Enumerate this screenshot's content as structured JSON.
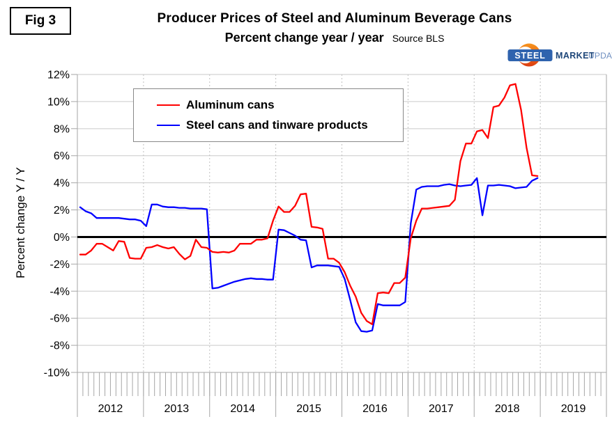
{
  "header": {
    "fig_label": "Fig 3",
    "title": "Producer Prices of Steel and Aluminum Beverage Cans",
    "subtitle": "Percent change year / year",
    "source": "Source BLS"
  },
  "logo": {
    "steel": "STEEL",
    "market": "MARKET",
    "update": "UPDATE",
    "box_color": "#2f63ae",
    "market_color": "#1e4679",
    "update_color": "#6f8fc0",
    "crescent_top_color": "#f7941e",
    "crescent_bottom_color": "#dd3e11"
  },
  "legend": {
    "items": [
      {
        "label": "Aluminum cans",
        "color": "#ff0000"
      },
      {
        "label": "Steel cans and tinware products",
        "color": "#0000ff"
      }
    ]
  },
  "y_axis": {
    "title": "Percent change Y / Y",
    "ticks": [
      "12%",
      "10%",
      "8%",
      "6%",
      "4%",
      "2%",
      "0%",
      "-2%",
      "-4%",
      "-6%",
      "-8%",
      "-10%"
    ]
  },
  "x_axis": {
    "years": [
      "2012",
      "2013",
      "2014",
      "2015",
      "2016",
      "2017",
      "2018",
      "2019"
    ]
  },
  "chart_data": {
    "type": "line",
    "title": "Producer Prices of Steel and Aluminum Beverage Cans",
    "subtitle": "Percent change year / year",
    "x_start": "2012-01",
    "x_interval": "monthly",
    "x_years": [
      2012,
      2013,
      2014,
      2015,
      2016,
      2017,
      2018,
      2019
    ],
    "ylim": [
      -10,
      12
    ],
    "y_tick_step": 2,
    "grid": true,
    "zero_line": true,
    "legend_position": "upper-left-inside",
    "series": [
      {
        "name": "Aluminum cans",
        "color": "#ff0000",
        "values": [
          -1.3,
          -1.3,
          -1.0,
          -0.5,
          -0.5,
          -0.75,
          -1.0,
          -0.3,
          -0.35,
          -1.55,
          -1.6,
          -1.6,
          -0.8,
          -0.75,
          -0.6,
          -0.75,
          -0.85,
          -0.75,
          -1.25,
          -1.65,
          -1.4,
          -0.2,
          -0.75,
          -0.8,
          -1.1,
          -1.15,
          -1.1,
          -1.15,
          -1.0,
          -0.5,
          -0.5,
          -0.5,
          -0.2,
          -0.2,
          -0.1,
          1.2,
          2.25,
          1.85,
          1.85,
          2.3,
          3.15,
          3.2,
          0.75,
          0.7,
          0.6,
          -1.6,
          -1.6,
          -1.9,
          -2.6,
          -3.6,
          -4.4,
          -5.6,
          -6.2,
          -6.45,
          -4.15,
          -4.1,
          -4.15,
          -3.4,
          -3.4,
          -3.0,
          -0.1,
          1.2,
          2.1,
          2.1,
          2.15,
          2.2,
          2.25,
          2.3,
          2.75,
          5.6,
          6.9,
          6.9,
          7.8,
          7.9,
          7.3,
          9.6,
          9.7,
          10.3,
          11.2,
          11.3,
          9.4,
          6.6,
          4.55,
          4.5
        ]
      },
      {
        "name": "Steel cans and tinware products",
        "color": "#0000ff",
        "values": [
          2.2,
          1.9,
          1.75,
          1.4,
          1.4,
          1.4,
          1.4,
          1.4,
          1.35,
          1.3,
          1.3,
          1.2,
          0.8,
          2.4,
          2.4,
          2.25,
          2.2,
          2.2,
          2.15,
          2.15,
          2.1,
          2.1,
          2.1,
          2.05,
          -3.8,
          -3.75,
          -3.6,
          -3.45,
          -3.3,
          -3.2,
          -3.1,
          -3.05,
          -3.1,
          -3.1,
          -3.15,
          -3.15,
          0.55,
          0.5,
          0.3,
          0.1,
          -0.2,
          -0.25,
          -2.25,
          -2.1,
          -2.1,
          -2.1,
          -2.15,
          -2.2,
          -3.1,
          -4.65,
          -6.3,
          -6.95,
          -7.0,
          -6.9,
          -4.95,
          -5.05,
          -5.05,
          -5.05,
          -5.05,
          -4.8,
          1.0,
          3.5,
          3.7,
          3.75,
          3.75,
          3.75,
          3.85,
          3.9,
          3.8,
          3.75,
          3.8,
          3.85,
          4.35,
          1.6,
          3.8,
          3.8,
          3.85,
          3.8,
          3.75,
          3.6,
          3.65,
          3.7,
          4.15,
          4.35
        ]
      }
    ]
  },
  "style": {
    "grid_color": "#c9c9c9",
    "dotted_grid_color": "#bfbfbf",
    "axis_color": "#a6a6a6",
    "zero_line_color": "#000000",
    "label_color": "#000000"
  }
}
